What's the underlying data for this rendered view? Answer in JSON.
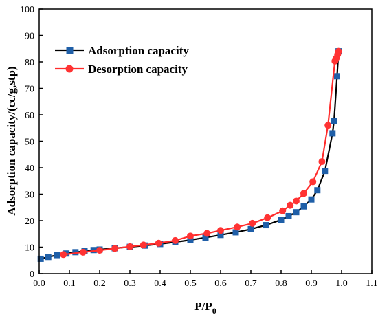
{
  "chart_data": {
    "type": "line",
    "xlabel": "P/P",
    "xlabel_sub": "0",
    "ylabel": "Adsorption capacity/(cc/g,stp)",
    "xlim": [
      0.0,
      1.1
    ],
    "ylim": [
      0,
      100
    ],
    "x_ticks": [
      "0.0",
      "0.1",
      "0.2",
      "0.3",
      "0.4",
      "0.5",
      "0.6",
      "0.7",
      "0.8",
      "0.9",
      "1.0",
      "1.1"
    ],
    "y_ticks": [
      "0",
      "10",
      "20",
      "30",
      "40",
      "50",
      "60",
      "70",
      "80",
      "90",
      "100"
    ],
    "grid": false,
    "legend_position": "top-left",
    "series": [
      {
        "name": "Adsorption capacity",
        "color": "#000000",
        "marker_color": "#1f5fa8",
        "marker": "square",
        "points": [
          [
            0.005,
            5.6
          ],
          [
            0.03,
            6.3
          ],
          [
            0.06,
            7.0
          ],
          [
            0.09,
            7.6
          ],
          [
            0.12,
            8.1
          ],
          [
            0.15,
            8.5
          ],
          [
            0.18,
            8.9
          ],
          [
            0.2,
            9.1
          ],
          [
            0.25,
            9.6
          ],
          [
            0.3,
            10.1
          ],
          [
            0.35,
            10.6
          ],
          [
            0.4,
            11.2
          ],
          [
            0.45,
            11.9
          ],
          [
            0.5,
            12.7
          ],
          [
            0.55,
            13.6
          ],
          [
            0.6,
            14.6
          ],
          [
            0.65,
            15.6
          ],
          [
            0.7,
            16.8
          ],
          [
            0.75,
            18.3
          ],
          [
            0.8,
            20.3
          ],
          [
            0.825,
            21.7
          ],
          [
            0.85,
            23.2
          ],
          [
            0.875,
            25.4
          ],
          [
            0.9,
            28.0
          ],
          [
            0.92,
            31.5
          ],
          [
            0.945,
            38.8
          ],
          [
            0.97,
            53.0
          ],
          [
            0.975,
            57.7
          ],
          [
            0.985,
            74.6
          ],
          [
            0.99,
            84.0
          ]
        ]
      },
      {
        "name": "Desorption capacity",
        "color": "#ff2b2b",
        "marker_color": "#ff3333",
        "marker": "circle",
        "points": [
          [
            0.99,
            84.0
          ],
          [
            0.987,
            82.8
          ],
          [
            0.983,
            81.5
          ],
          [
            0.978,
            80.3
          ],
          [
            0.955,
            56.0
          ],
          [
            0.935,
            42.3
          ],
          [
            0.905,
            34.7
          ],
          [
            0.875,
            30.3
          ],
          [
            0.85,
            27.4
          ],
          [
            0.83,
            25.8
          ],
          [
            0.805,
            23.7
          ],
          [
            0.755,
            21.1
          ],
          [
            0.705,
            19.0
          ],
          [
            0.655,
            17.6
          ],
          [
            0.6,
            16.3
          ],
          [
            0.555,
            15.2
          ],
          [
            0.5,
            14.2
          ],
          [
            0.45,
            12.5
          ],
          [
            0.395,
            11.5
          ],
          [
            0.345,
            10.8
          ],
          [
            0.3,
            10.2
          ],
          [
            0.25,
            9.5
          ],
          [
            0.2,
            8.8
          ],
          [
            0.145,
            8.1
          ],
          [
            0.08,
            7.2
          ]
        ]
      }
    ]
  }
}
